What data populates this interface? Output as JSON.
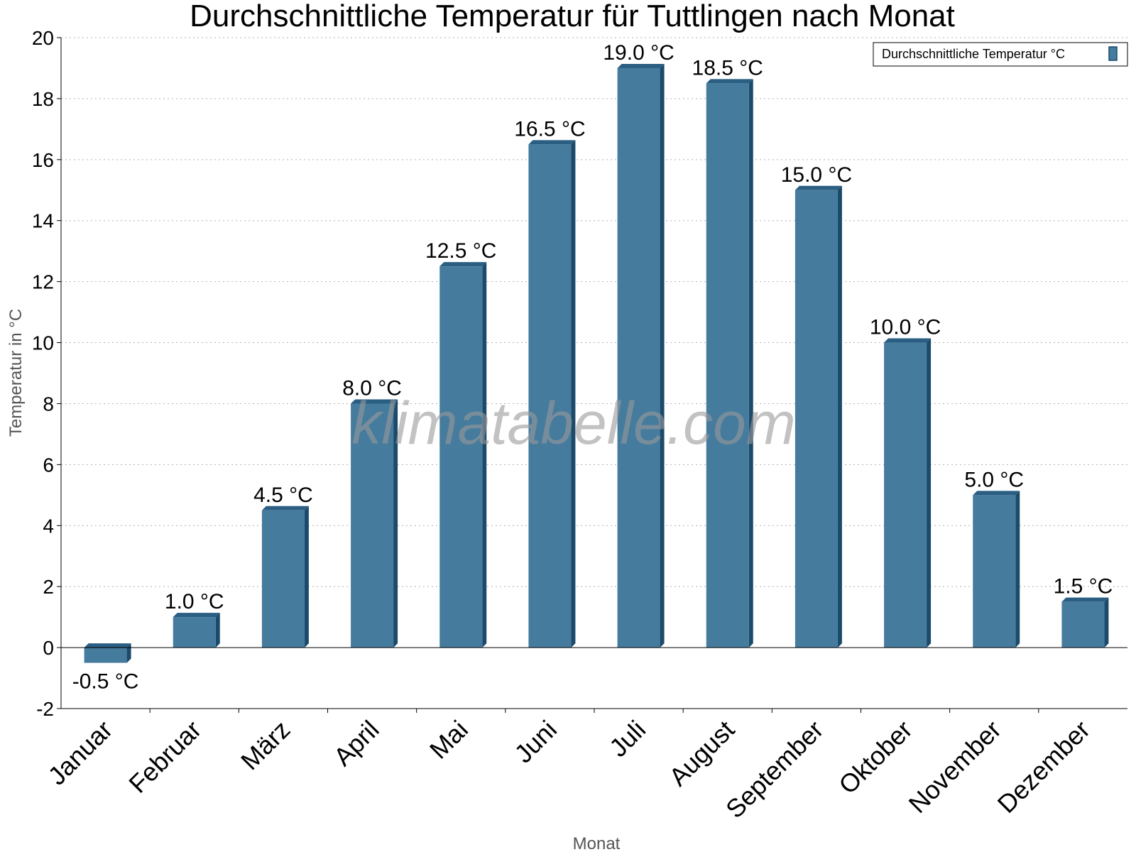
{
  "chart_data": {
    "type": "bar",
    "title": "Durchschnittliche Temperatur für Tuttlingen nach Monat",
    "xlabel": "Monat",
    "ylabel": "Temperatur in °C",
    "ylim": [
      -2,
      20
    ],
    "yticks": [
      -2,
      0,
      2,
      4,
      6,
      8,
      10,
      12,
      14,
      16,
      18,
      20
    ],
    "grid": true,
    "legend_position": "top-right",
    "unit_suffix": " °C",
    "categories": [
      "Januar",
      "Februar",
      "März",
      "April",
      "Mai",
      "Juni",
      "Juli",
      "August",
      "September",
      "Oktober",
      "November",
      "Dezember"
    ],
    "series": [
      {
        "name": "Durchschnittliche Temperatur °C",
        "color": "#457b9d",
        "values": [
          -0.5,
          1.0,
          4.5,
          8.0,
          12.5,
          16.5,
          19.0,
          18.5,
          15.0,
          10.0,
          5.0,
          1.5
        ]
      }
    ],
    "watermark": "klimatabelle.com"
  }
}
